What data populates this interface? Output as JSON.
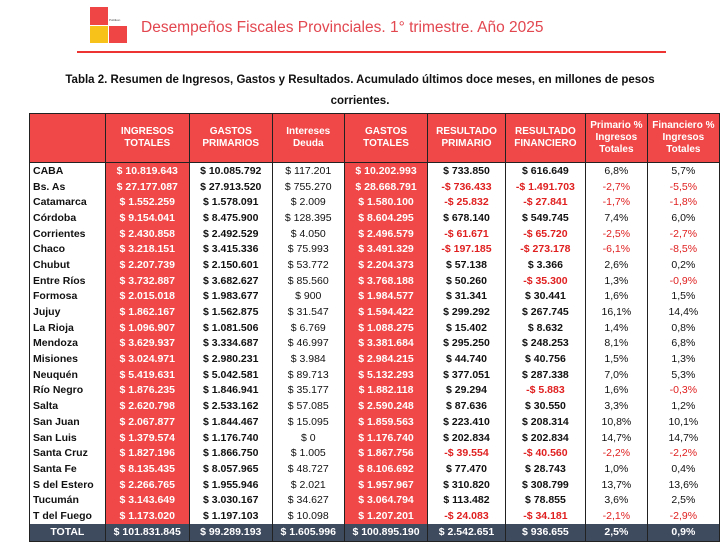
{
  "header": {
    "logo_text": "Politikon",
    "title": "Desempeños Fiscales Provinciales. 1° trimestre. Año 2025"
  },
  "caption": "Tabla 2. Resumen de Ingresos, Gastos y Resultados. Acumulado últimos doce meses, en millones de pesos corrientes.",
  "colors": {
    "accent": "#f04848",
    "total_row": "#3e4a5e",
    "negative": "#e02020"
  },
  "table": {
    "columns": [
      "",
      "INGRESOS TOTALES",
      "GASTOS PRIMARIOS",
      "Intereses Deuda",
      "GASTOS TOTALES",
      "RESULTADO PRIMARIO",
      "RESULTADO FINANCIERO",
      "Primario % Ingresos Totales",
      "Financiero % Ingresos Totales"
    ],
    "rows": [
      [
        "CABA",
        "$ 10.819.643",
        "$ 10.085.792",
        "$ 117.201",
        "$ 10.202.993",
        "$ 733.850",
        "$ 616.649",
        "6,8%",
        "5,7%"
      ],
      [
        "Bs. As",
        "$ 27.177.087",
        "$ 27.913.520",
        "$ 755.270",
        "$ 28.668.791",
        "-$ 736.433",
        "-$ 1.491.703",
        "-2,7%",
        "-5,5%"
      ],
      [
        "Catamarca",
        "$ 1.552.259",
        "$ 1.578.091",
        "$ 2.009",
        "$ 1.580.100",
        "-$ 25.832",
        "-$ 27.841",
        "-1,7%",
        "-1,8%"
      ],
      [
        "Córdoba",
        "$ 9.154.041",
        "$ 8.475.900",
        "$ 128.395",
        "$ 8.604.295",
        "$ 678.140",
        "$ 549.745",
        "7,4%",
        "6,0%"
      ],
      [
        "Corrientes",
        "$ 2.430.858",
        "$ 2.492.529",
        "$ 4.050",
        "$ 2.496.579",
        "-$ 61.671",
        "-$ 65.720",
        "-2,5%",
        "-2,7%"
      ],
      [
        "Chaco",
        "$ 3.218.151",
        "$ 3.415.336",
        "$ 75.993",
        "$ 3.491.329",
        "-$ 197.185",
        "-$ 273.178",
        "-6,1%",
        "-8,5%"
      ],
      [
        "Chubut",
        "$ 2.207.739",
        "$ 2.150.601",
        "$ 53.772",
        "$ 2.204.373",
        "$ 57.138",
        "$ 3.366",
        "2,6%",
        "0,2%"
      ],
      [
        "Entre Ríos",
        "$ 3.732.887",
        "$ 3.682.627",
        "$ 85.560",
        "$ 3.768.188",
        "$ 50.260",
        "-$ 35.300",
        "1,3%",
        "-0,9%"
      ],
      [
        "Formosa",
        "$ 2.015.018",
        "$ 1.983.677",
        "$ 900",
        "$ 1.984.577",
        "$ 31.341",
        "$ 30.441",
        "1,6%",
        "1,5%"
      ],
      [
        "Jujuy",
        "$ 1.862.167",
        "$ 1.562.875",
        "$ 31.547",
        "$ 1.594.422",
        "$ 299.292",
        "$ 267.745",
        "16,1%",
        "14,4%"
      ],
      [
        "La Rioja",
        "$ 1.096.907",
        "$ 1.081.506",
        "$ 6.769",
        "$ 1.088.275",
        "$ 15.402",
        "$ 8.632",
        "1,4%",
        "0,8%"
      ],
      [
        "Mendoza",
        "$ 3.629.937",
        "$ 3.334.687",
        "$ 46.997",
        "$ 3.381.684",
        "$ 295.250",
        "$ 248.253",
        "8,1%",
        "6,8%"
      ],
      [
        "Misiones",
        "$ 3.024.971",
        "$ 2.980.231",
        "$ 3.984",
        "$ 2.984.215",
        "$ 44.740",
        "$ 40.756",
        "1,5%",
        "1,3%"
      ],
      [
        "Neuquén",
        "$ 5.419.631",
        "$ 5.042.581",
        "$ 89.713",
        "$ 5.132.293",
        "$ 377.051",
        "$ 287.338",
        "7,0%",
        "5,3%"
      ],
      [
        "Río Negro",
        "$ 1.876.235",
        "$ 1.846.941",
        "$ 35.177",
        "$ 1.882.118",
        "$ 29.294",
        "-$ 5.883",
        "1,6%",
        "-0,3%"
      ],
      [
        "Salta",
        "$ 2.620.798",
        "$ 2.533.162",
        "$ 57.085",
        "$ 2.590.248",
        "$ 87.636",
        "$ 30.550",
        "3,3%",
        "1,2%"
      ],
      [
        "San Juan",
        "$ 2.067.877",
        "$ 1.844.467",
        "$ 15.095",
        "$ 1.859.563",
        "$ 223.410",
        "$ 208.314",
        "10,8%",
        "10,1%"
      ],
      [
        "San Luis",
        "$ 1.379.574",
        "$ 1.176.740",
        "$ 0",
        "$ 1.176.740",
        "$ 202.834",
        "$ 202.834",
        "14,7%",
        "14,7%"
      ],
      [
        "Santa Cruz",
        "$ 1.827.196",
        "$ 1.866.750",
        "$ 1.005",
        "$ 1.867.756",
        "-$ 39.554",
        "-$ 40.560",
        "-2,2%",
        "-2,2%"
      ],
      [
        "Santa Fe",
        "$ 8.135.435",
        "$ 8.057.965",
        "$ 48.727",
        "$ 8.106.692",
        "$ 77.470",
        "$ 28.743",
        "1,0%",
        "0,4%"
      ],
      [
        "S del Estero",
        "$ 2.266.765",
        "$ 1.955.946",
        "$ 2.021",
        "$ 1.957.967",
        "$ 310.820",
        "$ 308.799",
        "13,7%",
        "13,6%"
      ],
      [
        "Tucumán",
        "$ 3.143.649",
        "$ 3.030.167",
        "$ 34.627",
        "$ 3.064.794",
        "$ 113.482",
        "$ 78.855",
        "3,6%",
        "2,5%"
      ],
      [
        "T del Fuego",
        "$ 1.173.020",
        "$ 1.197.103",
        "$ 10.098",
        "$ 1.207.201",
        "-$ 24.083",
        "-$ 34.181",
        "-2,1%",
        "-2,9%"
      ]
    ],
    "total": [
      "TOTAL",
      "$ 101.831.845",
      "$ 99.289.193",
      "$ 1.605.996",
      "$ 100.895.190",
      "$ 2.542.651",
      "$ 936.655",
      "2,5%",
      "0,9%"
    ]
  }
}
